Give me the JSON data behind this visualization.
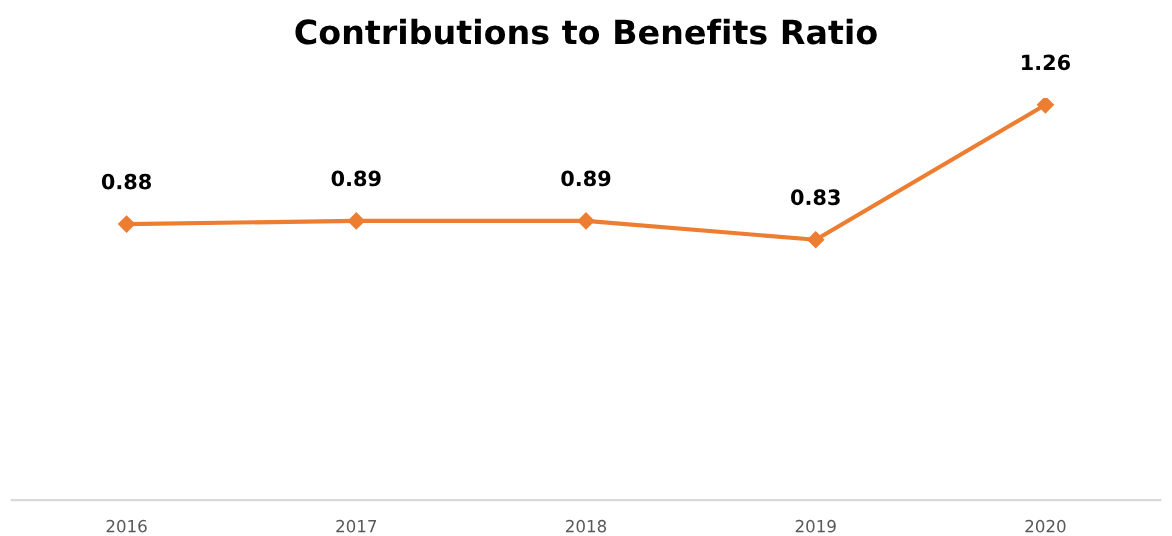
{
  "chart_data": {
    "type": "line",
    "title": "Contributions to Benefits Ratio",
    "categories": [
      "2016",
      "2017",
      "2018",
      "2019",
      "2020"
    ],
    "series": [
      {
        "color": "#ed7d31",
        "values": [
          0.88,
          0.89,
          0.89,
          0.83,
          1.26
        ]
      }
    ],
    "data_labels": true,
    "marker": "diamond",
    "grid": false,
    "legend": false,
    "tick_labels": "x"
  }
}
